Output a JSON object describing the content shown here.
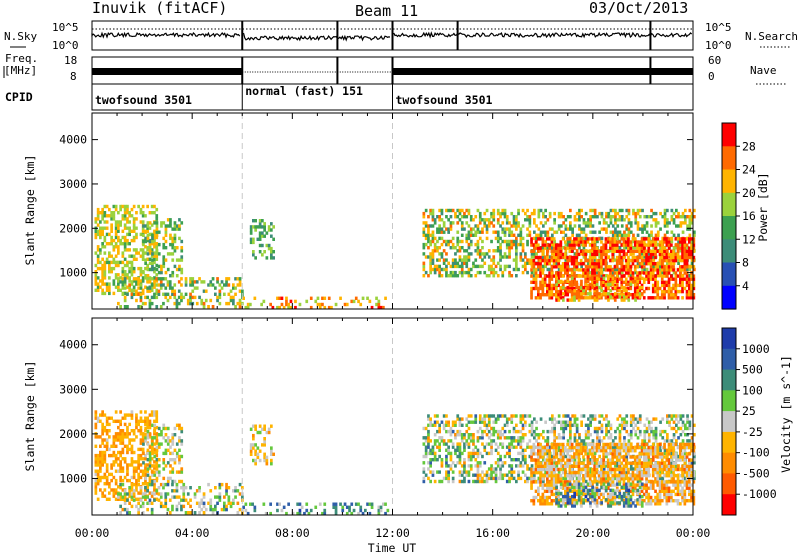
{
  "header": {
    "station": "Inuvik (fitACF)",
    "beam": "Beam 11",
    "date": "03/Oct/2013"
  },
  "noise_panel": {
    "left_label": "N.Sky",
    "right_label": "N.Search",
    "y_top_label": "10^5",
    "y_bottom_label": "10^0"
  },
  "freq_panel": {
    "left_label_line1": "Freq.",
    "left_label_line2": "[MHz]",
    "right_label": "Nave",
    "left_ticks": [
      "18",
      "8"
    ],
    "right_ticks": [
      "60",
      "0"
    ]
  },
  "cpid_panel": {
    "label": "CPID",
    "segments": [
      {
        "name": "twofsound 3501",
        "start_hour": 0,
        "end_hour": 6
      },
      {
        "name": "normal (fast) 151",
        "start_hour": 6,
        "end_hour": 12
      },
      {
        "name": "twofsound 3501",
        "start_hour": 12,
        "end_hour": 24
      }
    ]
  },
  "chart_data": [
    {
      "type": "heatmap",
      "panel": "power",
      "ylabel": "Slant Range [km]",
      "xlabel": "Time UT",
      "x_ticks": [
        "00:00",
        "04:00",
        "08:00",
        "12:00",
        "16:00",
        "20:00",
        "00:00"
      ],
      "x_range_hours": [
        0,
        24
      ],
      "y_ticks": [
        1000,
        2000,
        3000,
        4000
      ],
      "y_range_km": [
        180,
        4600
      ],
      "colorbar": {
        "label": "Power [dB]",
        "ticks": [
          "28",
          "24",
          "20",
          "16",
          "12",
          "8",
          "4"
        ],
        "colors": [
          "#ff0000",
          "#ff6a00",
          "#ffb400",
          "#9bd23c",
          "#3ca050",
          "#3c8c78",
          "#2850b4",
          "#0000ff"
        ]
      },
      "mode_change_hours": [
        6,
        12
      ]
    },
    {
      "type": "heatmap",
      "panel": "velocity",
      "ylabel": "Slant Range [km]",
      "xlabel": "Time UT",
      "x_ticks": [
        "00:00",
        "04:00",
        "08:00",
        "12:00",
        "16:00",
        "20:00",
        "00:00"
      ],
      "x_range_hours": [
        0,
        24
      ],
      "y_ticks": [
        1000,
        2000,
        3000,
        4000
      ],
      "y_range_km": [
        180,
        4600
      ],
      "colorbar": {
        "label": "Velocity [m s^-1]",
        "ticks": [
          "1000",
          "500",
          "100",
          "25",
          "-25",
          "-100",
          "-500",
          "-1000"
        ],
        "colors": [
          "#1e3caa",
          "#2f5ea8",
          "#3c8c78",
          "#64c83c",
          "#c8c8c8",
          "#ffb400",
          "#ff8c00",
          "#ff5a00",
          "#ff0000"
        ]
      },
      "mode_change_hours": [
        6,
        12
      ]
    }
  ]
}
